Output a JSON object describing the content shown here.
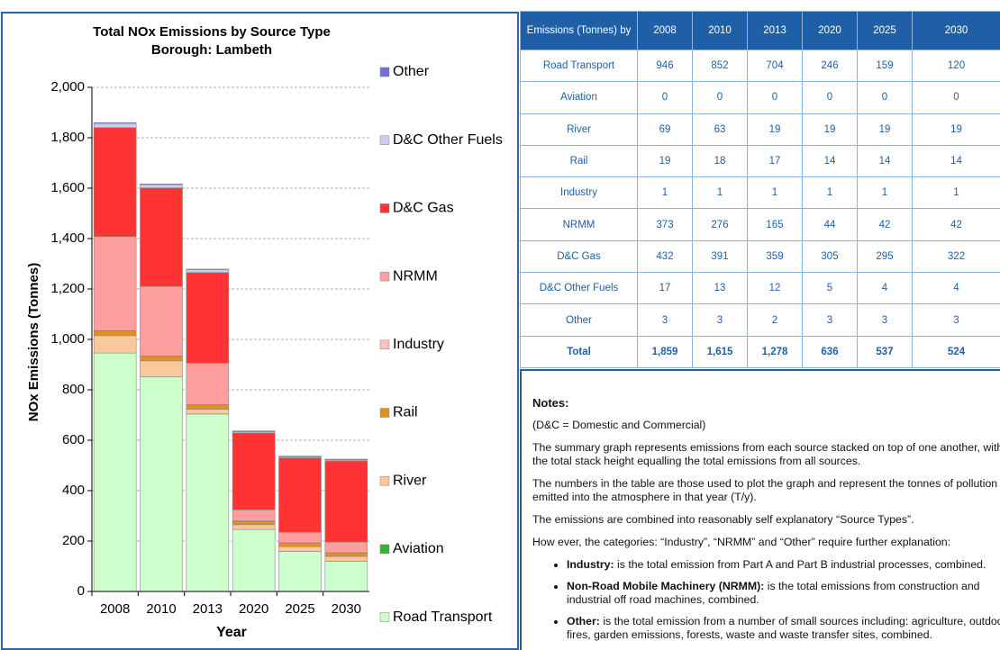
{
  "chart_data": {
    "type": "stacked_bar",
    "title": "Total NOx Emissions  by Source Type",
    "subtitle": "Borough:  Lambeth",
    "ylabel": "NOx Emissions  (Tonnes)",
    "xlabel": "Year",
    "categories": [
      "2008",
      "2010",
      "2013",
      "2020",
      "2025",
      "2030"
    ],
    "series": [
      {
        "name": "Road Transport",
        "color": "#ccffcc",
        "values": [
          946,
          852,
          704,
          246,
          159,
          120
        ]
      },
      {
        "name": "Aviation",
        "color": "#33b233",
        "values": [
          0,
          0,
          0,
          0,
          0,
          0
        ]
      },
      {
        "name": "River",
        "color": "#fac89a",
        "values": [
          69,
          63,
          19,
          19,
          19,
          19
        ]
      },
      {
        "name": "Rail",
        "color": "#e0901e",
        "values": [
          19,
          18,
          17,
          14,
          14,
          14
        ]
      },
      {
        "name": "Industry",
        "color": "#ffc0c0",
        "values": [
          1,
          1,
          1,
          1,
          1,
          1
        ]
      },
      {
        "name": "NRMM",
        "color": "#ff9e9e",
        "values": [
          373,
          276,
          165,
          44,
          42,
          42
        ]
      },
      {
        "name": "D&C Gas",
        "color": "#ff3333",
        "values": [
          432,
          391,
          359,
          305,
          295,
          322
        ]
      },
      {
        "name": "D&C Other Fuels",
        "color": "#ccccf5",
        "values": [
          17,
          13,
          12,
          5,
          4,
          4
        ]
      },
      {
        "name": "Other",
        "color": "#7070d8",
        "values": [
          3,
          3,
          2,
          3,
          3,
          3
        ]
      }
    ],
    "ylim": [
      0,
      2000
    ],
    "yticks": [
      0,
      200,
      400,
      600,
      800,
      {
        "value": 1000,
        "label": "1,000"
      },
      {
        "value": 1200,
        "label": "1,200"
      },
      {
        "value": 1400,
        "label": "1,400"
      },
      {
        "value": 1600,
        "label": "1,600"
      },
      {
        "value": 1800,
        "label": "1,800"
      },
      {
        "value": 2000,
        "label": "2,000"
      }
    ],
    "grid": true,
    "legend": "right"
  },
  "table": {
    "header": [
      "Emissions (Tonnes) by",
      "2008",
      "2010",
      "2013",
      "2020",
      "2025",
      "2030"
    ],
    "rows": [
      [
        "Road Transport",
        "946",
        "852",
        "704",
        "246",
        "159",
        "120"
      ],
      [
        "Aviation",
        "0",
        "0",
        "0",
        "0",
        "0",
        "0"
      ],
      [
        "River",
        "69",
        "63",
        "19",
        "19",
        "19",
        "19"
      ],
      [
        "Rail",
        "19",
        "18",
        "17",
        "14",
        "14",
        "14"
      ],
      [
        "Industry",
        "1",
        "1",
        "1",
        "1",
        "1",
        "1"
      ],
      [
        "NRMM",
        "373",
        "276",
        "165",
        "44",
        "42",
        "42"
      ],
      [
        "D&C Gas",
        "432",
        "391",
        "359",
        "305",
        "295",
        "322"
      ],
      [
        "D&C Other Fuels",
        "17",
        "13",
        "12",
        "5",
        "4",
        "4"
      ],
      [
        "Other",
        "3",
        "3",
        "2",
        "3",
        "3",
        "3"
      ],
      [
        "Total",
        "1,859",
        "1,615",
        "1,278",
        "636",
        "537",
        "524"
      ]
    ]
  },
  "notes": {
    "title": "Notes:",
    "paragraphs": [
      "(D&C = Domestic and Commercial)",
      "The summary graph represents emissions from each source stacked on top of one another, with the total stack height equalling the total emissions from all sources.",
      "The numbers in the table are those used to plot the graph and represent the tonnes of pollution emitted into the atmosphere in that year (T/y).",
      "The emissions are combined into reasonably self explanatory “Source Types”.",
      "How ever, the categories: “Industry”, “NRMM” and “Other” require further explanation:"
    ],
    "bullets": [
      {
        "term": "Industry:",
        "text": " is the total emission from Part A and Part B industrial processes, combined."
      },
      {
        "term": "Non-Road Mobile Machinery (NRMM):",
        "text": " is the total emissions from construction and industrial off road machines, combined."
      },
      {
        "term": "Other:",
        "text": " is the total emission from a number of small sources including: agriculture, outdoor fires, garden emissions, forests, waste and waste transfer sites, combined."
      }
    ]
  }
}
